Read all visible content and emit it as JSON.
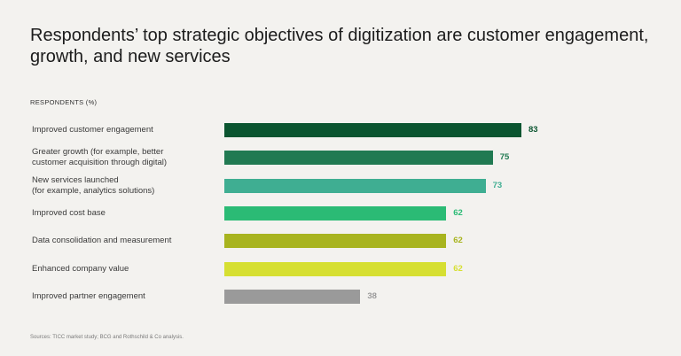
{
  "title": "Respondents’ top strategic objectives of digitization are customer engagement, growth, and new services",
  "subtitle": "RESPONDENTS (%)",
  "source": "Sources: TICC market study; BCG and Rothschild & Co analysis.",
  "chart_data": {
    "type": "bar",
    "orientation": "horizontal",
    "title": "Respondents’ top strategic objectives of digitization are customer engagement, growth, and new services",
    "ylabel": "RESPONDENTS (%)",
    "xlim": [
      0,
      83
    ],
    "grid": false,
    "categories": [
      "Improved customer engagement",
      "Greater growth (for example, better\ncustomer acquisition through digital)",
      "New services launched\n(for example, analytics solutions)",
      "Improved cost base",
      "Data consolidation and measurement",
      "Enhanced company value",
      "Improved partner engagement"
    ],
    "values": [
      83,
      75,
      73,
      62,
      62,
      62,
      38
    ],
    "bar_colors": [
      "#0b5530",
      "#217a52",
      "#3fae92",
      "#2bbb75",
      "#a8b41f",
      "#d6df32",
      "#9a9a9a"
    ],
    "label_colors": [
      "#0b5530",
      "#217a52",
      "#3fae92",
      "#2bbb75",
      "#a8b41f",
      "#d6df32",
      "#9a9a9a"
    ]
  }
}
